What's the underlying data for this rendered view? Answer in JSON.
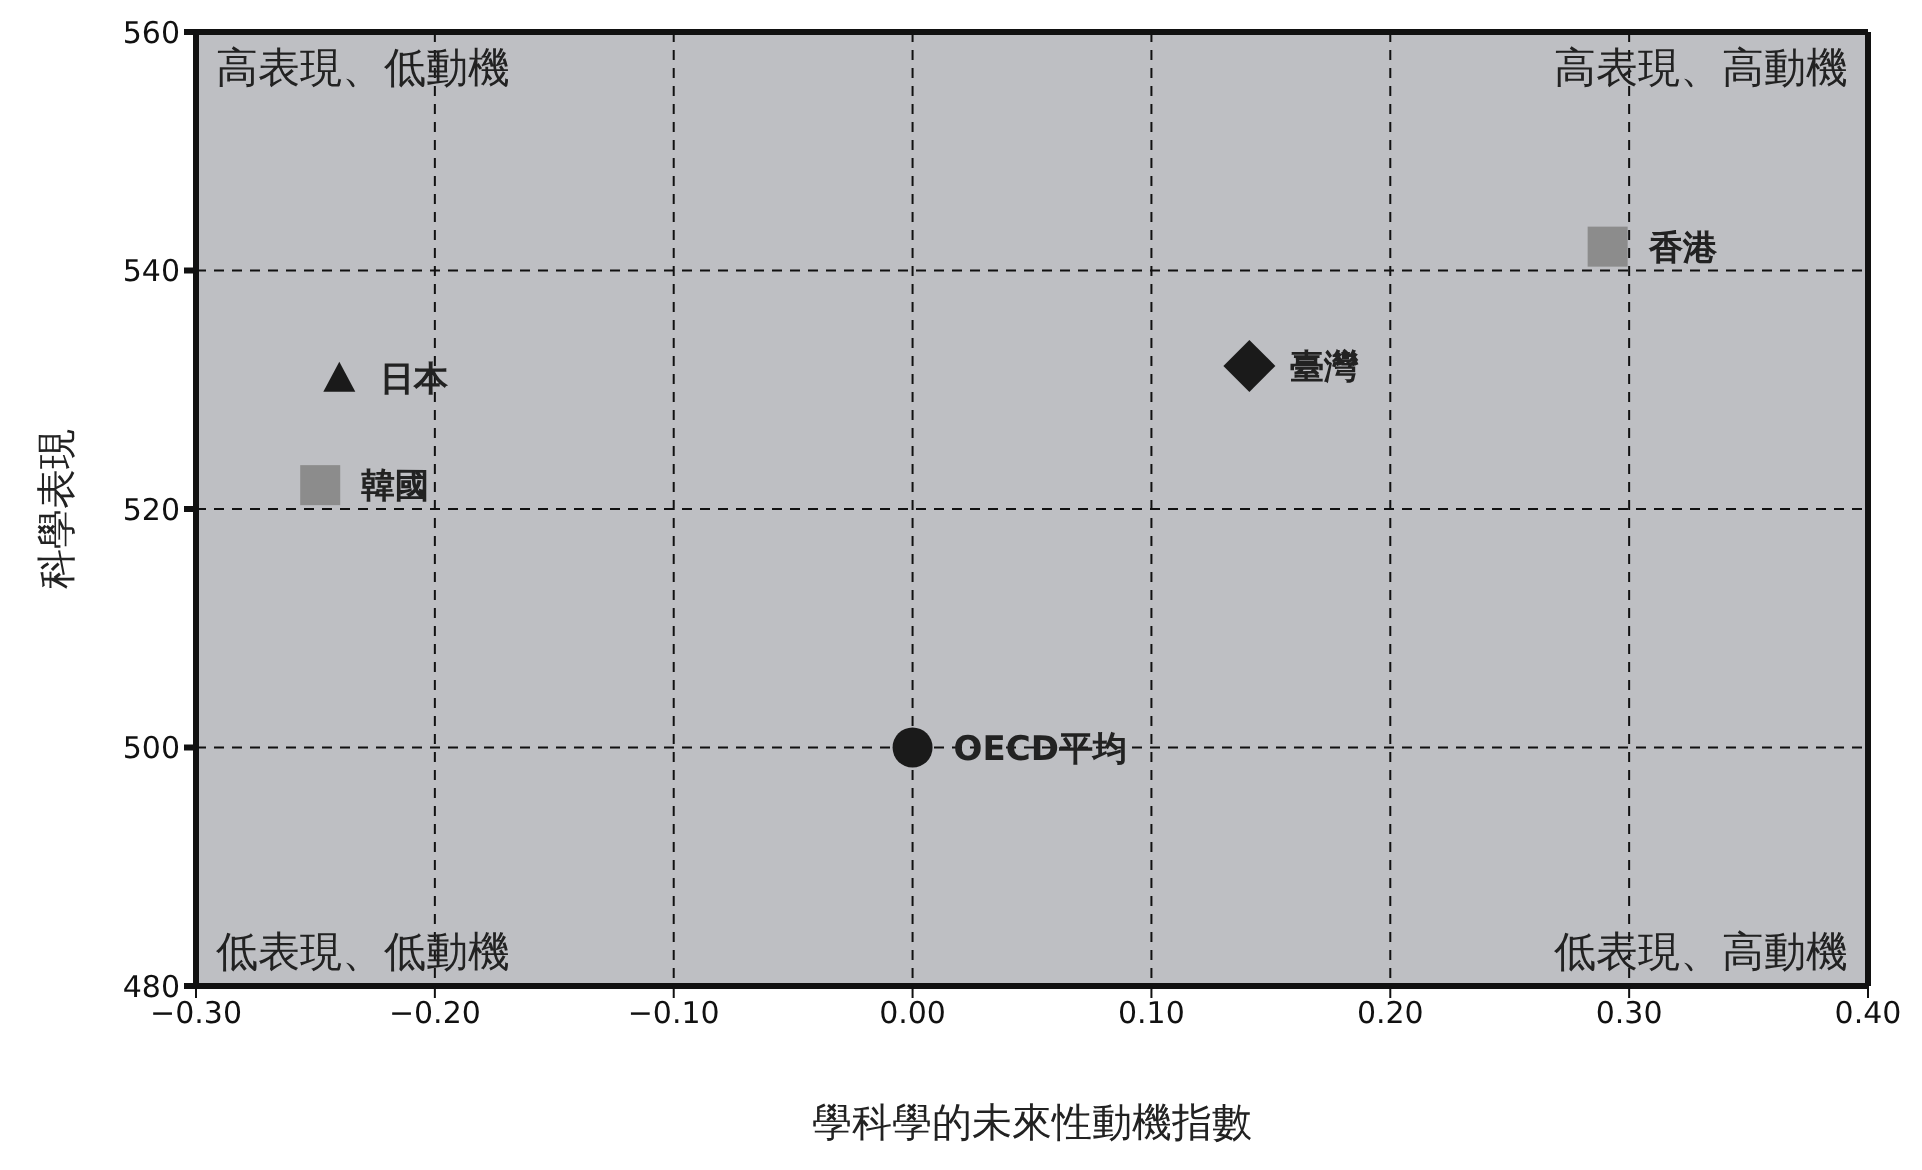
{
  "chart_data": {
    "type": "scatter",
    "xlabel": "學科學的未來性動機指數",
    "ylabel": "科學表現",
    "xlim": [
      -0.3,
      0.4
    ],
    "xticks": [
      {
        "value": -0.3,
        "label": "−0.30"
      },
      {
        "value": -0.2,
        "label": "−0.20"
      },
      {
        "value": -0.1,
        "label": "−0.10"
      },
      {
        "value": 0,
        "label": "0.00"
      },
      {
        "value": 0.1,
        "label": "0.10"
      },
      {
        "value": 0.2,
        "label": "0.20"
      },
      {
        "value": 0.3,
        "label": "0.30"
      },
      {
        "value": 0.4,
        "label": "0.40"
      }
    ],
    "ylim": [
      480,
      560
    ],
    "yticks": [
      480,
      500,
      520,
      540,
      560
    ],
    "grid": true,
    "legend": false,
    "annotations": [
      "高表現、低動機",
      "高表現、高動機",
      "低表現、低動機",
      "低表現、高動機"
    ],
    "series": [
      {
        "name": "日本",
        "color": "#1a1a1a",
        "marker": "triangle",
        "x": [
          -0.24
        ],
        "values": [
          531
        ]
      },
      {
        "name": "韓國",
        "color": "#8c8c8c",
        "marker": "square",
        "x": [
          -0.248
        ],
        "values": [
          522
        ]
      },
      {
        "name": "臺灣",
        "color": "#1a1a1a",
        "marker": "diamond",
        "x": [
          0.141
        ],
        "values": [
          532
        ]
      },
      {
        "name": "香港",
        "color": "#8c8c8c",
        "marker": "square",
        "x": [
          0.291
        ],
        "values": [
          542
        ]
      },
      {
        "name": "OECD平均",
        "color": "#1a1a1a",
        "marker": "circle",
        "x": [
          0
        ],
        "values": [
          500
        ]
      }
    ]
  }
}
